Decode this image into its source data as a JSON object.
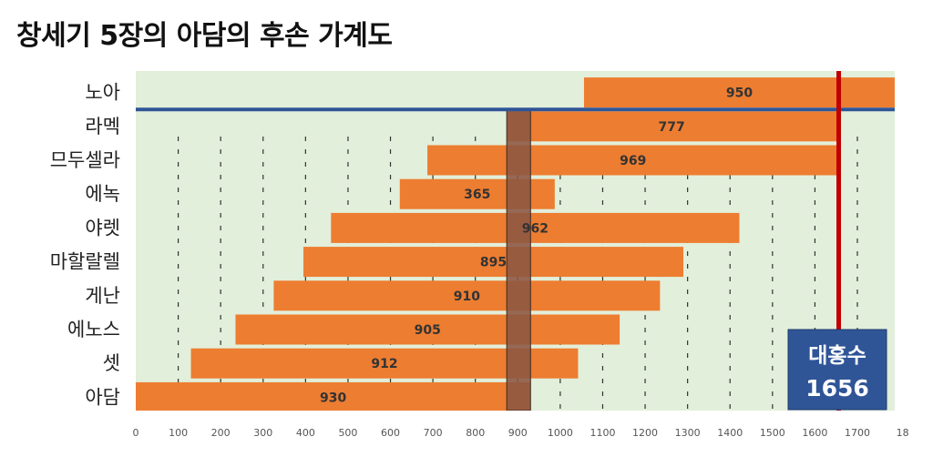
{
  "title": "창세기 5장의 아담의 후손 가계도",
  "chart_data": {
    "type": "bar",
    "orientation": "horizontal-floating",
    "categories": [
      "노아",
      "라멕",
      "므두셀라",
      "에녹",
      "야렛",
      "마할랄렐",
      "게난",
      "에노스",
      "셋",
      "아담"
    ],
    "series": [
      {
        "start": [
          1056,
          874,
          687,
          622,
          460,
          395,
          325,
          235,
          130,
          0
        ],
        "lifespan": [
          950,
          777,
          969,
          365,
          962,
          895,
          910,
          905,
          912,
          930
        ],
        "value_labels": [
          "950",
          "777",
          "969",
          "365",
          "962",
          "895",
          "910",
          "905",
          "912",
          "930"
        ]
      }
    ],
    "x_ticks": [
      "0",
      "100",
      "200",
      "300",
      "400",
      "500",
      "600",
      "700",
      "800",
      "900",
      "1000",
      "1100",
      "1200",
      "1300",
      "1400",
      "1500",
      "1600",
      "1700",
      "18"
    ],
    "xlim": [
      0,
      1800
    ],
    "flood": {
      "year": 1656,
      "line1": "대홍수",
      "line2": "1656"
    },
    "highlight_range": [
      874,
      930
    ],
    "divider_below": "노아",
    "colors": {
      "bar": "#ED7D31",
      "plot_bg": "#E2EFDA",
      "flood_line": "#C00000",
      "flood_box": "#2F5597",
      "divider": "#2F5597",
      "highlight": "#8B5742"
    }
  }
}
